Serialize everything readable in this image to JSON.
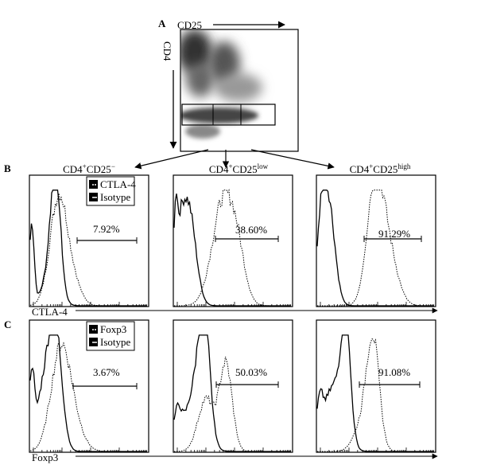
{
  "panel_a": {
    "label": "A",
    "x_axis": "CD25",
    "y_axis": "CD4"
  },
  "columns": [
    {
      "parts": [
        "CD4",
        "+",
        "CD25",
        "−"
      ]
    },
    {
      "parts": [
        "CD4",
        "+",
        "CD25",
        "low"
      ]
    },
    {
      "parts": [
        "CD4",
        "+",
        "CD25",
        "high"
      ]
    }
  ],
  "row_b": {
    "label": "B",
    "legend": [
      "CTLA-4",
      "Isotype"
    ],
    "percentages": [
      "7.92%",
      "38.60%",
      "91.29%"
    ],
    "axis_label": "CTLA-4"
  },
  "row_c": {
    "label": "C",
    "legend": [
      "Foxp3",
      "Isotype"
    ],
    "percentages": [
      "3.67%",
      "50.03%",
      "91.08%"
    ],
    "axis_label": "Foxp3"
  }
}
